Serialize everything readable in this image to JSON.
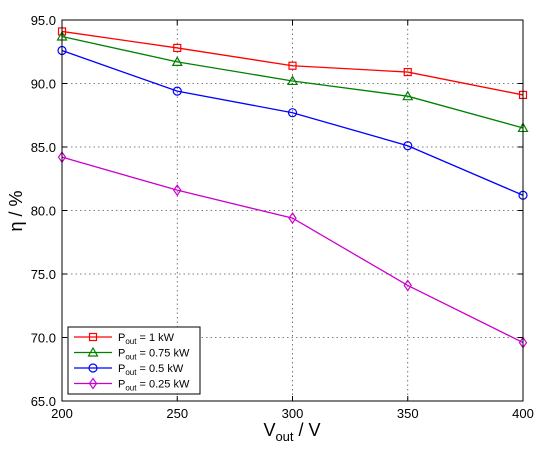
{
  "chart_data": {
    "type": "line",
    "title": "",
    "xlabel": {
      "main": "V",
      "sub": "out",
      "suffix": " / V"
    },
    "ylabel": "η / %",
    "x": [
      200,
      250,
      300,
      350,
      400
    ],
    "x_ticks": [
      "200",
      "250",
      "300",
      "350",
      "400"
    ],
    "y_ticks": [
      "65.0",
      "70.0",
      "75.0",
      "80.0",
      "85.0",
      "90.0",
      "95.0"
    ],
    "xlim": [
      200,
      400
    ],
    "ylim": [
      65,
      95
    ],
    "grid": true,
    "legend_position": "bottom-left",
    "series": [
      {
        "name": "P",
        "name_sub": "out",
        "name_suffix": " = 1 kW",
        "color": "#ff0000",
        "marker": "square",
        "values": [
          94.1,
          92.8,
          91.4,
          90.9,
          89.1
        ]
      },
      {
        "name": "P",
        "name_sub": "out",
        "name_suffix": " = 0.75 kW",
        "color": "#008000",
        "marker": "triangle",
        "values": [
          93.7,
          91.7,
          90.2,
          89.0,
          86.5
        ]
      },
      {
        "name": "P",
        "name_sub": "out",
        "name_suffix": " = 0.5 kW",
        "color": "#0000ff",
        "marker": "circle",
        "values": [
          92.6,
          89.4,
          87.7,
          85.1,
          81.2
        ]
      },
      {
        "name": "P",
        "name_sub": "out",
        "name_suffix": " = 0.25 kW",
        "color": "#cc00cc",
        "marker": "diamond",
        "values": [
          84.2,
          81.6,
          79.4,
          74.1,
          69.6
        ]
      }
    ]
  }
}
